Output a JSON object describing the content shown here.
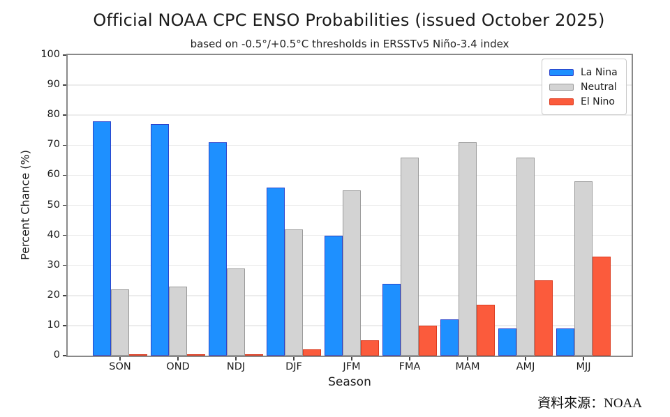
{
  "source_note": "資料來源：NOAA",
  "chart_data": {
    "type": "bar",
    "title": "Official NOAA CPC ENSO Probabilities (issued October 2025)",
    "subtitle": "based on -0.5°/+0.5°C thresholds in ERSSTv5 Niño-3.4 index",
    "xlabel": "Season",
    "ylabel": "Percent Chance (%)",
    "categories": [
      "SON",
      "OND",
      "NDJ",
      "DJF",
      "JFM",
      "FMA",
      "MAM",
      "AMJ",
      "MJJ"
    ],
    "series": [
      {
        "name": "La Nina",
        "color": "#1e90ff",
        "edge_color": "#2b44cc",
        "values": [
          78,
          77,
          71,
          56,
          40,
          24,
          12,
          9,
          9
        ]
      },
      {
        "name": "Neutral",
        "color": "#d3d3d3",
        "edge_color": "#9a9a9a",
        "values": [
          22,
          23,
          29,
          42,
          55,
          66,
          71,
          66,
          58
        ]
      },
      {
        "name": "El Nino",
        "color": "#fb5b3c",
        "edge_color": "#dd3a1e",
        "values": [
          0,
          0,
          0,
          2,
          5,
          10,
          17,
          25,
          33
        ]
      }
    ],
    "ylim": [
      0,
      100
    ],
    "yticks": [
      0,
      10,
      20,
      30,
      40,
      50,
      60,
      70,
      80,
      90,
      100
    ],
    "grid": true,
    "legend_position": "upper right"
  }
}
